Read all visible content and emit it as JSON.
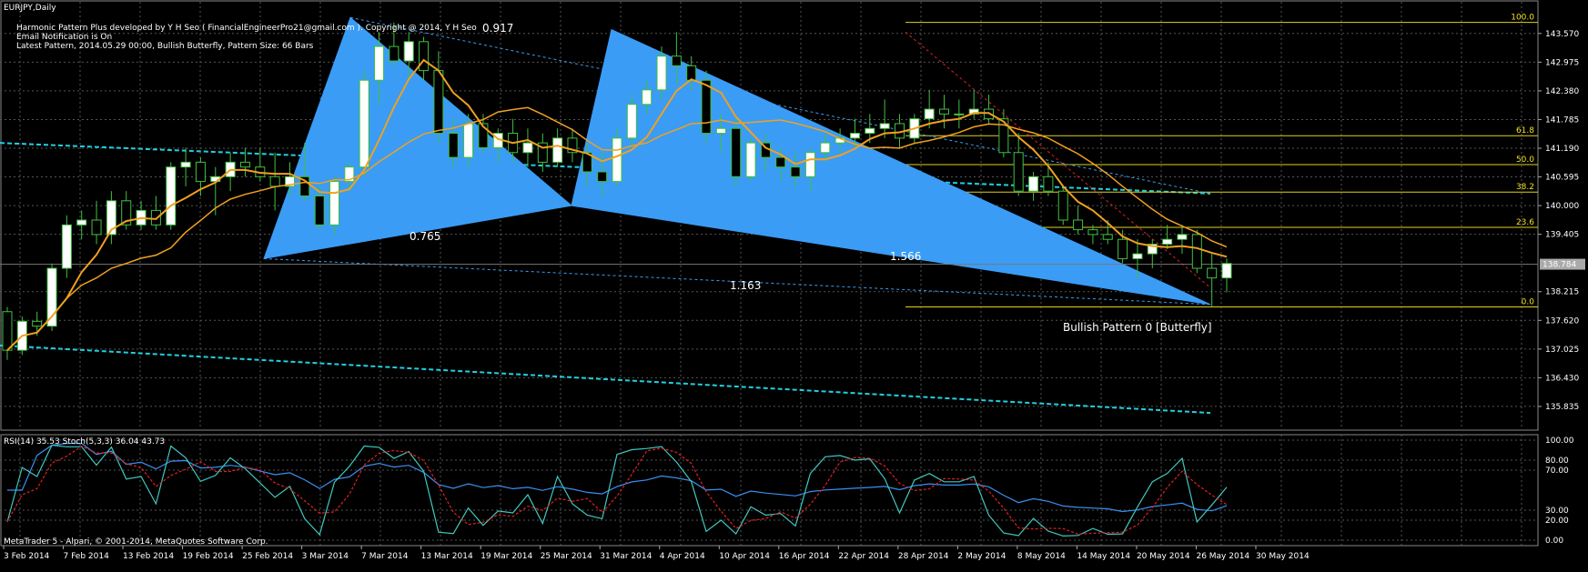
{
  "symbol_title": "EURJPY,Daily",
  "info_lines": [
    "Harmonic Pattern Plus developed by Y H Seo ( FinancialEngineerPro21@gmail.com ). Copyright @ 2014, Y H Seo",
    "Email Notification is On",
    "Latest Pattern, 2014.05.29 00:00, Bullish Butterfly, Pattern Size: 66 Bars"
  ],
  "pattern_label": "Bullish Pattern 0  [Butterfly]",
  "ratios": {
    "r1": "0.917",
    "r2": "0.765",
    "r3": "1.566",
    "r4": "1.163"
  },
  "price_axis": [
    "143.570",
    "142.975",
    "142.380",
    "141.785",
    "141.190",
    "140.595",
    "140.000",
    "139.405",
    "138.215",
    "137.620",
    "137.025",
    "136.430",
    "135.835"
  ],
  "current_price": "138.784",
  "fib_levels": [
    {
      "label": "100.0",
      "price": 143.8
    },
    {
      "label": "61.8",
      "price": 141.45
    },
    {
      "label": "50.0",
      "price": 140.85
    },
    {
      "label": "38.2",
      "price": 140.28
    },
    {
      "label": "23.6",
      "price": 139.55
    },
    {
      "label": "0.0",
      "price": 137.9
    }
  ],
  "indicator_label": "RSI(14) 35.53 Stoch(5,3,3) 36.04 43.73",
  "indicator_axis": [
    "100.00",
    "80.00",
    "70.00",
    "30.00",
    "20.00",
    "0.00"
  ],
  "date_axis": [
    "3 Feb 2014",
    "7 Feb 2014",
    "13 Feb 2014",
    "19 Feb 2014",
    "25 Feb 2014",
    "3 Mar 2014",
    "7 Mar 2014",
    "13 Mar 2014",
    "19 Mar 2014",
    "25 Mar 2014",
    "31 Mar 2014",
    "4 Apr 2014",
    "10 Apr 2014",
    "16 Apr 2014",
    "22 Apr 2014",
    "28 Apr 2014",
    "2 May 2014",
    "8 May 2014",
    "14 May 2014",
    "20 May 2014",
    "26 May 2014",
    "30 May 2014"
  ],
  "copyright": "MetaTrader 5 - Alpari, © 2001-2014, MetaQuotes Software Corp.",
  "colors": {
    "pattern": "#3a9cf5",
    "bull": "#ffffff",
    "bear": "#000000",
    "wick": "#40c040",
    "ma": "#f0a020",
    "channel": "#20d0e0",
    "rsi": "#3a8ff0",
    "stoch_main": "#40c8c0",
    "stoch_signal": "#e02020",
    "fib": "#e0d020"
  },
  "candles": [
    [
      137.8,
      137.9,
      136.8,
      137.0
    ],
    [
      137.0,
      137.7,
      136.9,
      137.6
    ],
    [
      137.6,
      137.8,
      137.3,
      137.5
    ],
    [
      137.5,
      138.8,
      137.4,
      138.7
    ],
    [
      138.7,
      139.8,
      138.5,
      139.6
    ],
    [
      139.6,
      139.9,
      139.3,
      139.7
    ],
    [
      139.7,
      140.1,
      139.2,
      139.4
    ],
    [
      139.4,
      140.3,
      139.2,
      140.1
    ],
    [
      140.1,
      140.3,
      139.5,
      139.6
    ],
    [
      139.6,
      140.1,
      139.5,
      139.9
    ],
    [
      139.9,
      140.2,
      139.5,
      139.6
    ],
    [
      139.6,
      140.9,
      139.5,
      140.8
    ],
    [
      140.8,
      141.2,
      140.4,
      140.9
    ],
    [
      140.9,
      141.0,
      140.2,
      140.5
    ],
    [
      140.5,
      140.8,
      139.8,
      140.6
    ],
    [
      140.6,
      141.1,
      140.3,
      140.9
    ],
    [
      140.9,
      141.2,
      140.6,
      140.8
    ],
    [
      140.8,
      141.2,
      140.5,
      140.6
    ],
    [
      140.6,
      141.1,
      139.9,
      140.4
    ],
    [
      140.4,
      140.9,
      140.2,
      140.6
    ],
    [
      140.6,
      141.3,
      140.1,
      140.2
    ],
    [
      140.2,
      140.4,
      139.5,
      139.6
    ],
    [
      139.6,
      140.6,
      139.4,
      140.5
    ],
    [
      140.5,
      140.9,
      140.3,
      140.8
    ],
    [
      140.8,
      142.8,
      140.6,
      142.6
    ],
    [
      142.6,
      143.6,
      142.1,
      143.3
    ],
    [
      143.3,
      143.8,
      142.9,
      143.0
    ],
    [
      143.0,
      143.6,
      142.6,
      143.4
    ],
    [
      143.4,
      143.5,
      142.6,
      142.8
    ],
    [
      142.8,
      143.2,
      141.3,
      141.5
    ],
    [
      141.5,
      141.8,
      140.8,
      141.0
    ],
    [
      141.0,
      141.9,
      140.8,
      141.7
    ],
    [
      141.7,
      141.9,
      141.1,
      141.2
    ],
    [
      141.2,
      141.6,
      140.9,
      141.5
    ],
    [
      141.5,
      141.8,
      140.9,
      141.1
    ],
    [
      141.1,
      141.6,
      140.8,
      141.3
    ],
    [
      141.3,
      141.5,
      140.7,
      140.9
    ],
    [
      140.9,
      141.6,
      140.8,
      141.4
    ],
    [
      141.4,
      141.6,
      140.9,
      141.1
    ],
    [
      141.1,
      141.3,
      140.4,
      140.7
    ],
    [
      140.7,
      141.1,
      140.2,
      140.5
    ],
    [
      140.5,
      141.6,
      140.4,
      141.4
    ],
    [
      141.4,
      142.3,
      141.2,
      142.1
    ],
    [
      142.1,
      142.6,
      141.9,
      142.4
    ],
    [
      142.4,
      143.3,
      142.2,
      143.1
    ],
    [
      143.1,
      143.6,
      142.5,
      142.9
    ],
    [
      142.9,
      143.1,
      142.4,
      142.6
    ],
    [
      142.6,
      142.8,
      141.3,
      141.5
    ],
    [
      141.5,
      141.9,
      141.1,
      141.6
    ],
    [
      141.6,
      141.8,
      140.4,
      140.6
    ],
    [
      140.6,
      141.4,
      140.5,
      141.3
    ],
    [
      141.3,
      141.5,
      140.7,
      141.0
    ],
    [
      141.0,
      141.2,
      140.5,
      140.8
    ],
    [
      140.8,
      141.1,
      140.4,
      140.6
    ],
    [
      140.6,
      141.2,
      140.3,
      141.1
    ],
    [
      141.1,
      141.5,
      140.9,
      141.3
    ],
    [
      141.3,
      141.6,
      141.1,
      141.4
    ],
    [
      141.4,
      141.8,
      141.2,
      141.5
    ],
    [
      141.5,
      141.9,
      141.3,
      141.6
    ],
    [
      141.6,
      142.2,
      141.4,
      141.7
    ],
    [
      141.7,
      141.9,
      141.2,
      141.4
    ],
    [
      141.4,
      141.9,
      141.3,
      141.8
    ],
    [
      141.8,
      142.4,
      141.6,
      142.0
    ],
    [
      142.0,
      142.3,
      141.6,
      141.9
    ],
    [
      141.9,
      142.2,
      141.6,
      141.9
    ],
    [
      141.9,
      142.4,
      141.8,
      142.0
    ],
    [
      142.0,
      142.3,
      141.7,
      141.8
    ],
    [
      141.8,
      142.0,
      141.0,
      141.1
    ],
    [
      141.1,
      141.5,
      140.2,
      140.3
    ],
    [
      140.3,
      140.7,
      140.1,
      140.6
    ],
    [
      140.6,
      140.9,
      140.2,
      140.3
    ],
    [
      140.3,
      140.4,
      139.6,
      139.7
    ],
    [
      139.7,
      140.0,
      139.4,
      139.5
    ],
    [
      139.5,
      139.6,
      139.2,
      139.4
    ],
    [
      139.4,
      139.7,
      139.2,
      139.3
    ],
    [
      139.3,
      139.5,
      138.8,
      138.9
    ],
    [
      138.9,
      139.3,
      138.5,
      139.0
    ],
    [
      139.0,
      139.3,
      138.7,
      139.2
    ],
    [
      139.2,
      139.6,
      139.1,
      139.3
    ],
    [
      139.3,
      139.6,
      139.0,
      139.4
    ],
    [
      139.4,
      139.5,
      138.6,
      138.7
    ],
    [
      138.7,
      139.0,
      137.9,
      138.5
    ],
    [
      138.5,
      138.9,
      138.2,
      138.8
    ]
  ]
}
